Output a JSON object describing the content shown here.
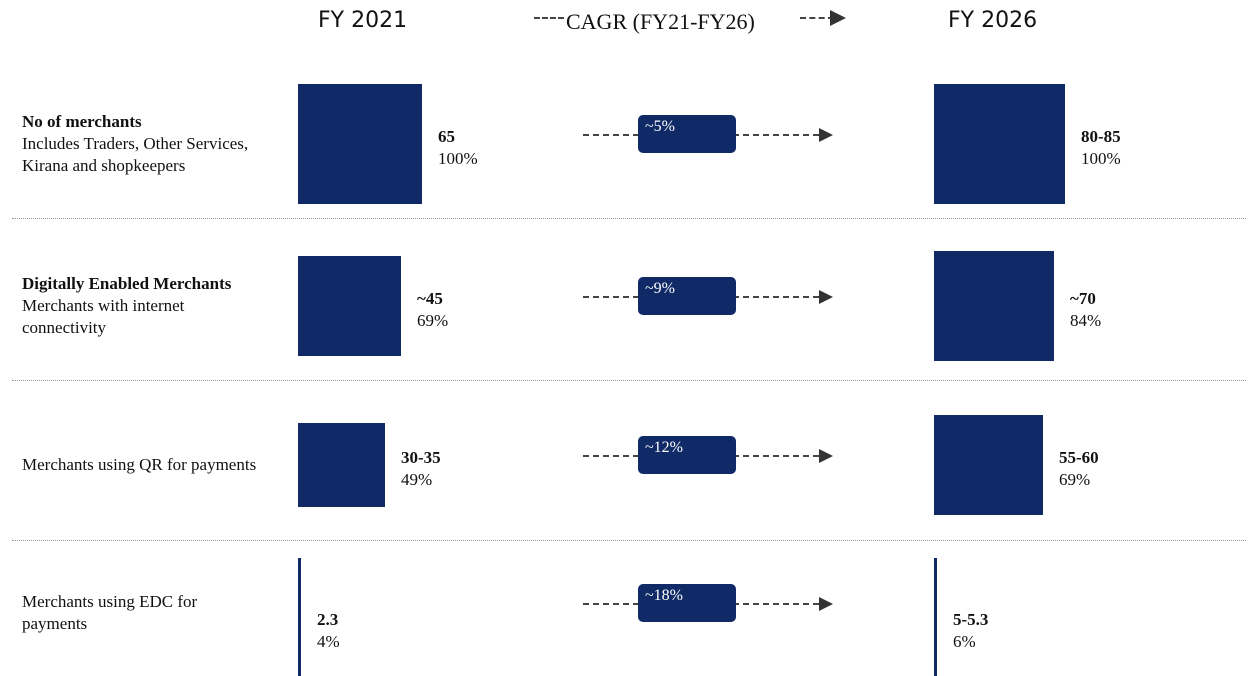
{
  "headers": {
    "fy2021": "FY 2021",
    "fy2026": "FY 2026",
    "cagr": "CAGR (FY21-FY26)"
  },
  "colors": {
    "bar": "#0f2a66",
    "pill": "#0f2a66",
    "arrow": "#333333"
  },
  "chart_data": {
    "type": "bar",
    "title": "",
    "unit": "",
    "rows": [
      {
        "label_bold": "No of merchants",
        "label_text": "Includes Traders, Other Services, Kirana and shopkeepers",
        "fy21_value_label": "65",
        "fy21_share_label": "100%",
        "fy21_share": 100,
        "fy26_value_label": "80-85",
        "fy26_share_label": "100%",
        "fy26_share": 100,
        "cagr": "~5%"
      },
      {
        "label_bold": "Digitally Enabled Merchants",
        "label_text": "Merchants with internet connectivity",
        "fy21_value_label": "~45",
        "fy21_share_label": "69%",
        "fy21_share": 69,
        "fy26_value_label": "~70",
        "fy26_share_label": "84%",
        "fy26_share": 84,
        "cagr": "~9%"
      },
      {
        "label_bold": "",
        "label_text": "Merchants using QR for payments",
        "fy21_value_label": "30-35",
        "fy21_share_label": "49%",
        "fy21_share": 49,
        "fy26_value_label": "55-60",
        "fy26_share_label": "69%",
        "fy26_share": 69,
        "cagr": "~12%"
      },
      {
        "label_bold": "",
        "label_text": "Merchants using EDC for payments",
        "fy21_value_label": "2.3",
        "fy21_share_label": "4%",
        "fy21_share": 4,
        "fy26_value_label": "5-5.3",
        "fy26_share_label": "6%",
        "fy26_share": 6,
        "cagr": "~18%"
      }
    ]
  }
}
